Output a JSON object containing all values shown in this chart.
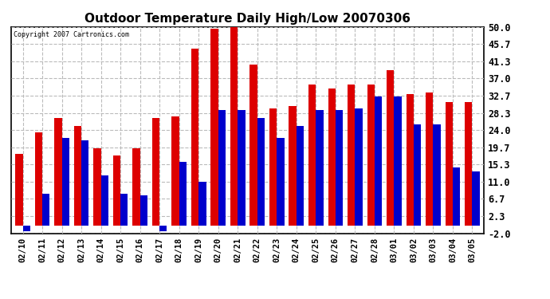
{
  "title": "Outdoor Temperature Daily High/Low 20070306",
  "copyright": "Copyright 2007 Cartronics.com",
  "categories": [
    "02/10",
    "02/11",
    "02/12",
    "02/13",
    "02/14",
    "02/15",
    "02/16",
    "02/17",
    "02/18",
    "02/19",
    "02/20",
    "02/21",
    "02/22",
    "02/23",
    "02/24",
    "02/25",
    "02/26",
    "02/27",
    "02/28",
    "03/01",
    "03/02",
    "03/03",
    "03/04",
    "03/05"
  ],
  "highs": [
    18.0,
    23.5,
    27.0,
    25.0,
    19.5,
    17.5,
    19.5,
    27.0,
    27.5,
    44.5,
    49.5,
    50.0,
    40.5,
    29.5,
    30.0,
    35.5,
    34.5,
    35.5,
    35.5,
    39.0,
    33.0,
    33.5,
    31.0,
    31.0
  ],
  "lows": [
    -1.5,
    8.0,
    22.0,
    21.5,
    12.5,
    8.0,
    7.5,
    -1.5,
    16.0,
    11.0,
    29.0,
    29.0,
    27.0,
    22.0,
    25.0,
    29.0,
    29.0,
    29.5,
    32.5,
    32.5,
    25.5,
    25.5,
    14.5,
    13.5
  ],
  "bar_color_high": "#dd0000",
  "bar_color_low": "#0000cc",
  "background_color": "#ffffff",
  "plot_bg_color": "#ffffff",
  "grid_color": "#aaaaaa",
  "ylim_min": -2.0,
  "ylim_max": 50.0,
  "yticks": [
    -2.0,
    2.3,
    6.7,
    11.0,
    15.3,
    19.7,
    24.0,
    28.3,
    32.7,
    37.0,
    41.3,
    45.7,
    50.0
  ],
  "ytick_labels": [
    "-2.0",
    "2.3",
    "6.7",
    "11.0",
    "15.3",
    "19.7",
    "24.0",
    "28.3",
    "32.7",
    "37.0",
    "41.3",
    "45.7",
    "50.0"
  ]
}
